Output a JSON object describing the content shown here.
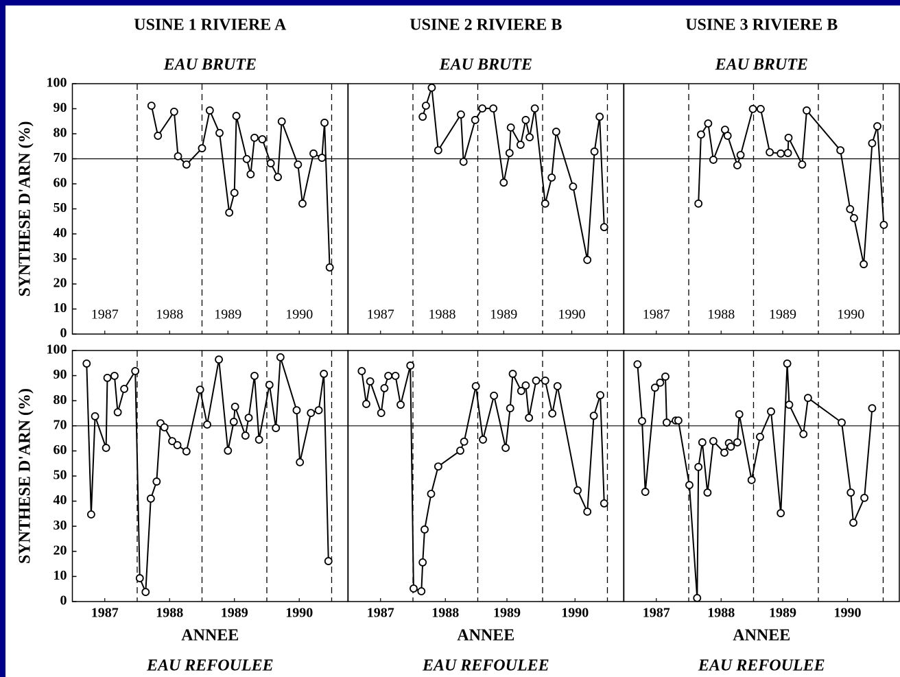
{
  "chart_data": [
    {
      "type": "line",
      "title": "USINE 1 RIVIERE A",
      "subtitle": "EAU BRUTE",
      "ylabel": "SYNTHESE D'ARN (%)",
      "xlim": [
        1987,
        1991.25
      ],
      "ylim": [
        0,
        100
      ],
      "yticks": [
        0,
        10,
        20,
        30,
        40,
        50,
        60,
        70,
        80,
        90,
        100
      ],
      "xticks": [
        {
          "value": 1987.5,
          "label": "1987"
        },
        {
          "value": 1988.5,
          "label": "1988"
        },
        {
          "value": 1989.4,
          "label": "1989"
        },
        {
          "value": 1990.5,
          "label": "1990"
        }
      ],
      "vlines": [
        1988,
        1989,
        1990,
        1991
      ],
      "hline": 70,
      "color": "#000000",
      "x": [
        1988.22,
        1988.32,
        1988.57,
        1988.63,
        1988.76,
        1989.0,
        1989.12,
        1989.27,
        1989.42,
        1989.5,
        1989.53,
        1989.69,
        1989.75,
        1989.81,
        1989.93,
        1990.06,
        1990.17,
        1990.23,
        1990.48,
        1990.55,
        1990.72,
        1990.85,
        1990.89,
        1990.97
      ],
      "values": [
        91.2,
        79.2,
        88.8,
        71,
        67.7,
        74.2,
        89.3,
        80.3,
        48.5,
        56.4,
        87.1,
        69.9,
        63.8,
        78.4,
        77.8,
        68.2,
        62.7,
        84.9,
        67.7,
        52.1,
        72.1,
        70.4,
        84.4,
        26.6
      ]
    },
    {
      "type": "line",
      "title": "USINE 2 RIVIERE B",
      "subtitle": "EAU BRUTE",
      "xlim": [
        1987,
        1991.25
      ],
      "ylim": [
        0,
        100
      ],
      "xticks": [
        {
          "value": 1987.5,
          "label": "1987"
        },
        {
          "value": 1988.45,
          "label": "1988"
        },
        {
          "value": 1989.4,
          "label": "1989"
        },
        {
          "value": 1990.45,
          "label": "1990"
        }
      ],
      "vlines": [
        1988,
        1989,
        1990,
        1991
      ],
      "hline": 70,
      "color": "#000000",
      "x": [
        1988.15,
        1988.2,
        1988.29,
        1988.39,
        1988.74,
        1988.78,
        1988.96,
        1989.07,
        1989.24,
        1989.4,
        1989.49,
        1989.51,
        1989.66,
        1989.74,
        1989.8,
        1989.88,
        1990.04,
        1990.14,
        1990.21,
        1990.47,
        1990.69,
        1990.8,
        1990.88,
        1990.95
      ],
      "values": [
        86.8,
        91.2,
        98.4,
        73.4,
        87.7,
        68.8,
        85.5,
        90.1,
        90.1,
        60.5,
        72.3,
        82.5,
        75.6,
        85.5,
        78.6,
        90.1,
        52.1,
        62.5,
        80.8,
        58.9,
        29.6,
        72.9,
        86.8,
        42.7
      ]
    },
    {
      "type": "line",
      "title": "USINE 3 RIVIERE B",
      "subtitle": "EAU BRUTE",
      "xlim": [
        1987,
        1991.25
      ],
      "ylim": [
        0,
        100
      ],
      "xticks": [
        {
          "value": 1987.5,
          "label": "1987"
        },
        {
          "value": 1988.5,
          "label": "1988"
        },
        {
          "value": 1989.45,
          "label": "1989"
        },
        {
          "value": 1990.5,
          "label": "1990"
        }
      ],
      "vlines": [
        1988,
        1989,
        1990,
        1991
      ],
      "hline": 70,
      "color": "#000000",
      "x": [
        1988.15,
        1988.19,
        1988.3,
        1988.38,
        1988.56,
        1988.6,
        1988.75,
        1988.8,
        1988.99,
        1989.11,
        1989.25,
        1989.42,
        1989.53,
        1989.54,
        1989.75,
        1989.82,
        1990.34,
        1990.49,
        1990.55,
        1990.7,
        1990.83,
        1990.91,
        1991.01
      ],
      "values": [
        52.1,
        79.7,
        84.1,
        69.6,
        81.6,
        79.2,
        67.4,
        71.5,
        89.9,
        89.9,
        72.6,
        72.1,
        72.3,
        78.4,
        67.7,
        89.3,
        73.4,
        49.9,
        46.3,
        27.9,
        76.2,
        83,
        43.6
      ]
    },
    {
      "type": "line",
      "subtitle": "EAU REFOULEE",
      "ylabel": "SYNTHESE D'ARN (%)",
      "xlabel": "ANNEE",
      "xlim": [
        1987,
        1991.25
      ],
      "ylim": [
        0,
        100
      ],
      "yticks": [
        0,
        10,
        20,
        30,
        40,
        50,
        60,
        70,
        80,
        90,
        100
      ],
      "xticks": [
        {
          "value": 1987.5,
          "label": "1987"
        },
        {
          "value": 1988.5,
          "label": "1988"
        },
        {
          "value": 1989.5,
          "label": "1989"
        },
        {
          "value": 1990.5,
          "label": "1990"
        }
      ],
      "vlines": [
        1988,
        1989,
        1990,
        1991
      ],
      "hline": 70,
      "color": "#000000",
      "x": [
        1987.22,
        1987.29,
        1987.35,
        1987.52,
        1987.54,
        1987.65,
        1987.7,
        1987.8,
        1987.97,
        1988.04,
        1988.13,
        1988.21,
        1988.3,
        1988.36,
        1988.42,
        1988.54,
        1988.62,
        1988.76,
        1988.97,
        1989.08,
        1989.26,
        1989.4,
        1989.49,
        1989.51,
        1989.67,
        1989.72,
        1989.81,
        1989.88,
        1990.04,
        1990.14,
        1990.21,
        1990.46,
        1990.51,
        1990.68,
        1990.8,
        1990.88,
        1990.95
      ],
      "values": [
        94.8,
        34.7,
        73.8,
        61.2,
        89.1,
        89.9,
        75.4,
        84.7,
        91.8,
        9.3,
        3.8,
        41,
        47.8,
        71,
        69.4,
        63.9,
        62.3,
        59.8,
        84.4,
        70.5,
        96.4,
        60.1,
        71.6,
        77.6,
        66.1,
        73.2,
        89.9,
        64.5,
        86.3,
        69.1,
        97.3,
        76.2,
        55.5,
        75.1,
        76.2,
        90.7,
        16.1
      ]
    },
    {
      "type": "line",
      "subtitle": "EAU REFOULEE",
      "xlabel": "ANNEE",
      "xlim": [
        1987,
        1991.25
      ],
      "ylim": [
        0,
        100
      ],
      "xticks": [
        {
          "value": 1987.5,
          "label": "1987"
        },
        {
          "value": 1988.5,
          "label": "1988"
        },
        {
          "value": 1989.45,
          "label": "1989"
        },
        {
          "value": 1990.5,
          "label": "1990"
        }
      ],
      "vlines": [
        1988,
        1989,
        1990,
        1991
      ],
      "hline": 70,
      "color": "#000000",
      "x": [
        1987.21,
        1987.28,
        1987.34,
        1987.51,
        1987.56,
        1987.62,
        1987.73,
        1987.81,
        1987.96,
        1988.01,
        1988.13,
        1988.15,
        1988.18,
        1988.28,
        1988.39,
        1988.73,
        1988.79,
        1988.97,
        1989.08,
        1989.25,
        1989.43,
        1989.5,
        1989.54,
        1989.67,
        1989.74,
        1989.79,
        1989.9,
        1990.04,
        1990.15,
        1990.23,
        1990.54,
        1990.69,
        1990.79,
        1990.89,
        1990.95
      ],
      "values": [
        91.8,
        78.7,
        87.7,
        75.1,
        85,
        89.9,
        89.9,
        78.4,
        94,
        5.2,
        4.1,
        15.6,
        28.7,
        42.9,
        53.8,
        60.1,
        63.7,
        85.8,
        64.5,
        82,
        61.2,
        77,
        90.7,
        83.9,
        86.1,
        73.2,
        88,
        88,
        74.9,
        85.8,
        44.3,
        35.8,
        74,
        82.2,
        39.1
      ]
    },
    {
      "type": "line",
      "subtitle": "EAU REFOULEE",
      "xlabel": "ANNEE",
      "xlim": [
        1987,
        1991.25
      ],
      "ylim": [
        0,
        100
      ],
      "xticks": [
        {
          "value": 1987.5,
          "label": "1987"
        },
        {
          "value": 1988.5,
          "label": "1988"
        },
        {
          "value": 1989.45,
          "label": "1989"
        },
        {
          "value": 1990.45,
          "label": "1990"
        }
      ],
      "vlines": [
        1988,
        1989,
        1990,
        1991
      ],
      "hline": 70,
      "color": "#000000",
      "x": [
        1987.21,
        1987.28,
        1987.33,
        1987.48,
        1987.56,
        1987.64,
        1987.66,
        1987.8,
        1987.84,
        1988.01,
        1988.13,
        1988.15,
        1988.21,
        1988.29,
        1988.38,
        1988.55,
        1988.62,
        1988.65,
        1988.75,
        1988.78,
        1988.97,
        1989.1,
        1989.27,
        1989.42,
        1989.52,
        1989.55,
        1989.77,
        1989.84,
        1990.36,
        1990.5,
        1990.54,
        1990.71,
        1990.83
      ],
      "values": [
        94.5,
        71.9,
        43.7,
        85.2,
        87.2,
        89.6,
        71.3,
        72.1,
        72.1,
        46.4,
        1.4,
        53.6,
        63.4,
        43.4,
        63.9,
        59.3,
        63.1,
        61.7,
        63.4,
        74.6,
        48.4,
        65.6,
        75.7,
        35.2,
        94.8,
        78.4,
        66.7,
        81.1,
        71.3,
        43.4,
        31.4,
        41.3,
        77
      ]
    }
  ]
}
